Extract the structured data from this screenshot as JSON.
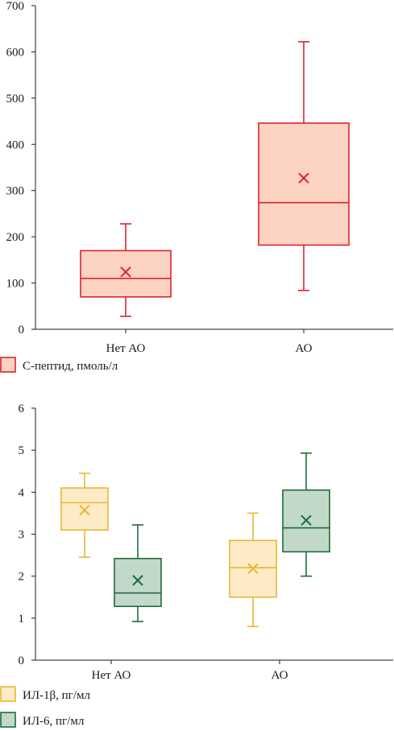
{
  "chart_data": [
    {
      "type": "boxplot",
      "categories": [
        "Нет АО",
        "АО"
      ],
      "ylim": [
        0,
        700
      ],
      "yticks": [
        0,
        100,
        200,
        300,
        400,
        500,
        600,
        700
      ],
      "grid": false,
      "legend_position": "bottom-left",
      "series": [
        {
          "name": "С-пептид, пмоль/л",
          "stroke": "#d7262f",
          "fill": "#fcd3c3",
          "boxes": [
            {
              "min": 28,
              "q1": 70,
              "median": 110,
              "q3": 170,
              "max": 228,
              "mean": 124
            },
            {
              "min": 84,
              "q1": 182,
              "median": 274,
              "q3": 446,
              "max": 622,
              "mean": 327
            }
          ]
        }
      ]
    },
    {
      "type": "boxplot",
      "categories": [
        "Нет АО",
        "АО"
      ],
      "ylim": [
        0,
        6
      ],
      "yticks": [
        0,
        1,
        2,
        3,
        4,
        5,
        6
      ],
      "grid": false,
      "legend_position": "bottom-left",
      "series": [
        {
          "name": "ИЛ-1β, пг/мл",
          "stroke": "#e8b732",
          "fill": "#fcebc6",
          "boxes": [
            {
              "min": 2.45,
              "q1": 3.1,
              "median": 3.75,
              "q3": 4.1,
              "max": 4.45,
              "mean": 3.57
            },
            {
              "min": 0.8,
              "q1": 1.5,
              "median": 2.2,
              "q3": 2.85,
              "max": 3.5,
              "mean": 2.18
            }
          ]
        },
        {
          "name": "ИЛ-6, пг/мл",
          "stroke": "#1f6b3a",
          "fill": "#c2d9c9",
          "boxes": [
            {
              "min": 0.92,
              "q1": 1.28,
              "median": 1.6,
              "q3": 2.42,
              "max": 3.22,
              "mean": 1.9
            },
            {
              "min": 2.0,
              "q1": 2.58,
              "median": 3.15,
              "q3": 4.05,
              "max": 4.93,
              "mean": 3.33
            }
          ]
        }
      ]
    }
  ]
}
